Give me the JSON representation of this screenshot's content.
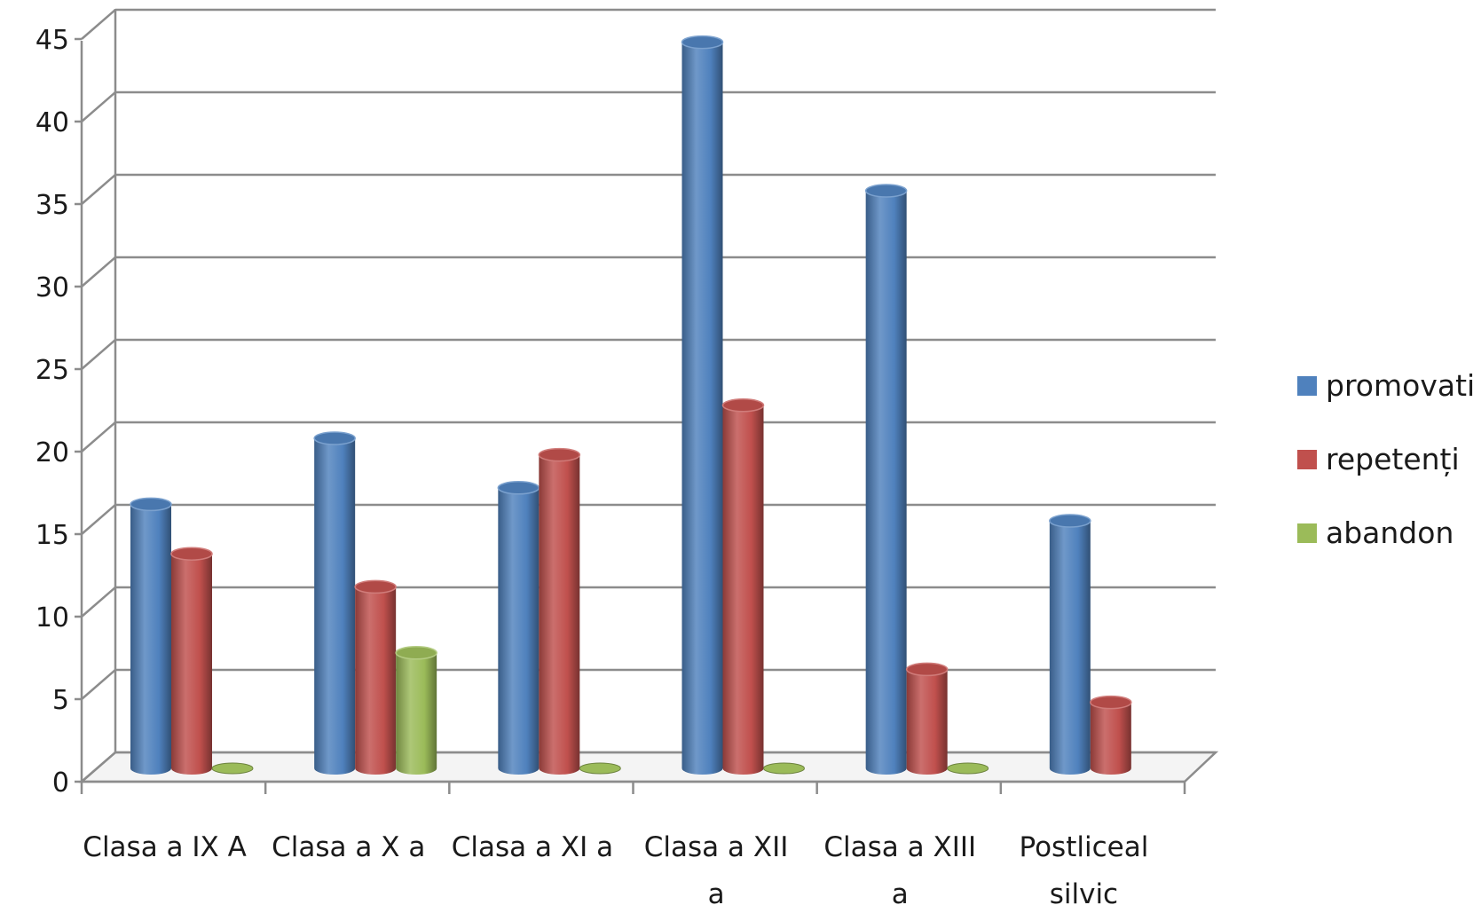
{
  "chart_data": {
    "type": "bar",
    "title": "",
    "xlabel": "",
    "ylabel": "",
    "ylim": [
      0,
      45
    ],
    "yticks": [
      0,
      5,
      10,
      15,
      20,
      25,
      30,
      35,
      40,
      45
    ],
    "grid": true,
    "legend_position": "right",
    "categories": [
      [
        "Clasa a IX A"
      ],
      [
        "Clasa a X a"
      ],
      [
        "Clasa a XI a"
      ],
      [
        "Clasa a XII",
        "a"
      ],
      [
        "Clasa a XIII",
        "a"
      ],
      [
        "Postliceal",
        "silvic"
      ]
    ],
    "series": [
      {
        "name": "promovati",
        "color": "#4f81bd",
        "values": [
          16,
          20,
          17,
          44,
          35,
          15
        ]
      },
      {
        "name": "repetenți",
        "color": "#c0504d",
        "values": [
          13,
          11,
          19,
          22,
          6,
          4
        ]
      },
      {
        "name": "abandon",
        "color": "#9bbb59",
        "values": [
          0,
          7,
          0,
          0,
          0,
          null
        ]
      }
    ]
  }
}
